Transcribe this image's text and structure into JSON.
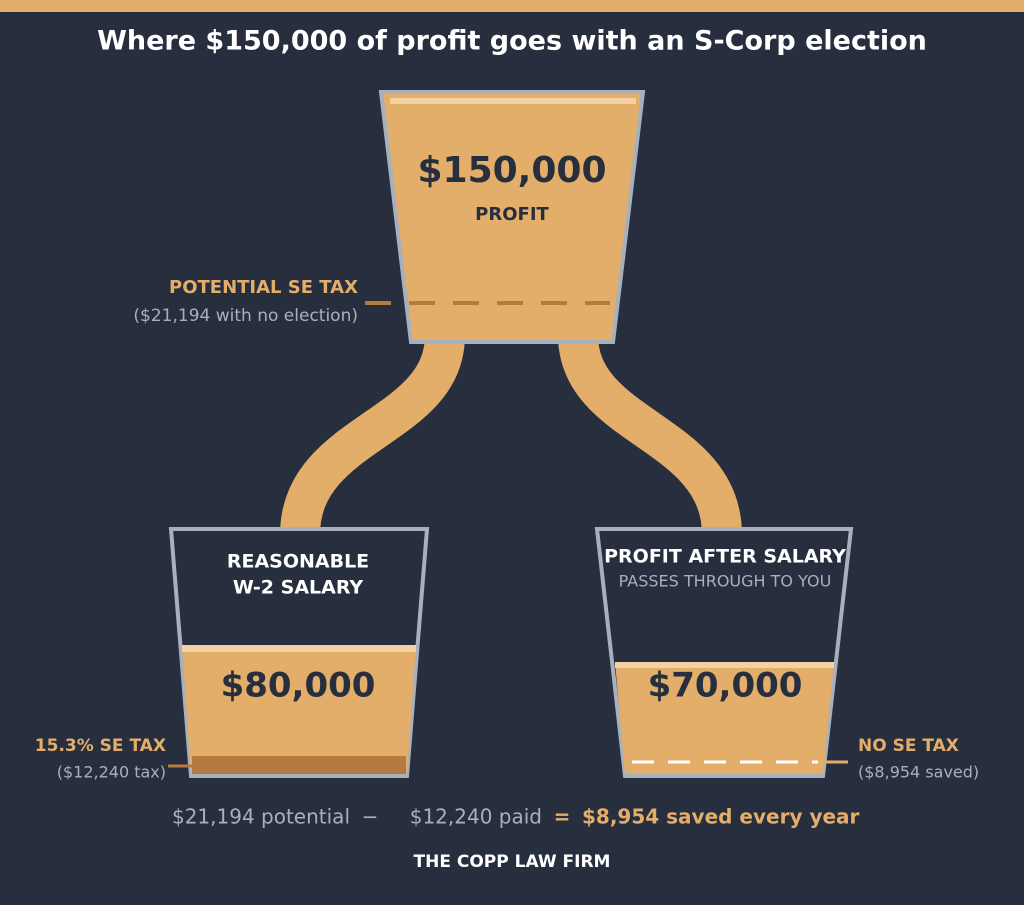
{
  "title": "Where $150,000 of profit goes with an S-Corp election",
  "top_cup": {
    "amount": "$150,000",
    "label": "PROFIT"
  },
  "top_note": {
    "label": "POTENTIAL SE TAX",
    "detail": "($21,194 with no election)"
  },
  "left_cup": {
    "label_line1": "REASONABLE",
    "label_line2": "W-2 SALARY",
    "amount": "$80,000"
  },
  "left_note": {
    "label": "15.3% SE TAX",
    "detail": "($12,240 tax)"
  },
  "right_cup": {
    "label": "PROFIT AFTER SALARY",
    "sublabel": "PASSES THROUGH TO YOU",
    "amount": "$70,000"
  },
  "right_note": {
    "label": "NO SE TAX",
    "detail": "($8,954 saved)"
  },
  "equation": {
    "potential": "$21,194 potential",
    "minus": "−",
    "paid": "$12,240 paid",
    "equals": "=",
    "result": "$8,954 saved every year"
  },
  "footer": "THE COPP LAW FIRM"
}
